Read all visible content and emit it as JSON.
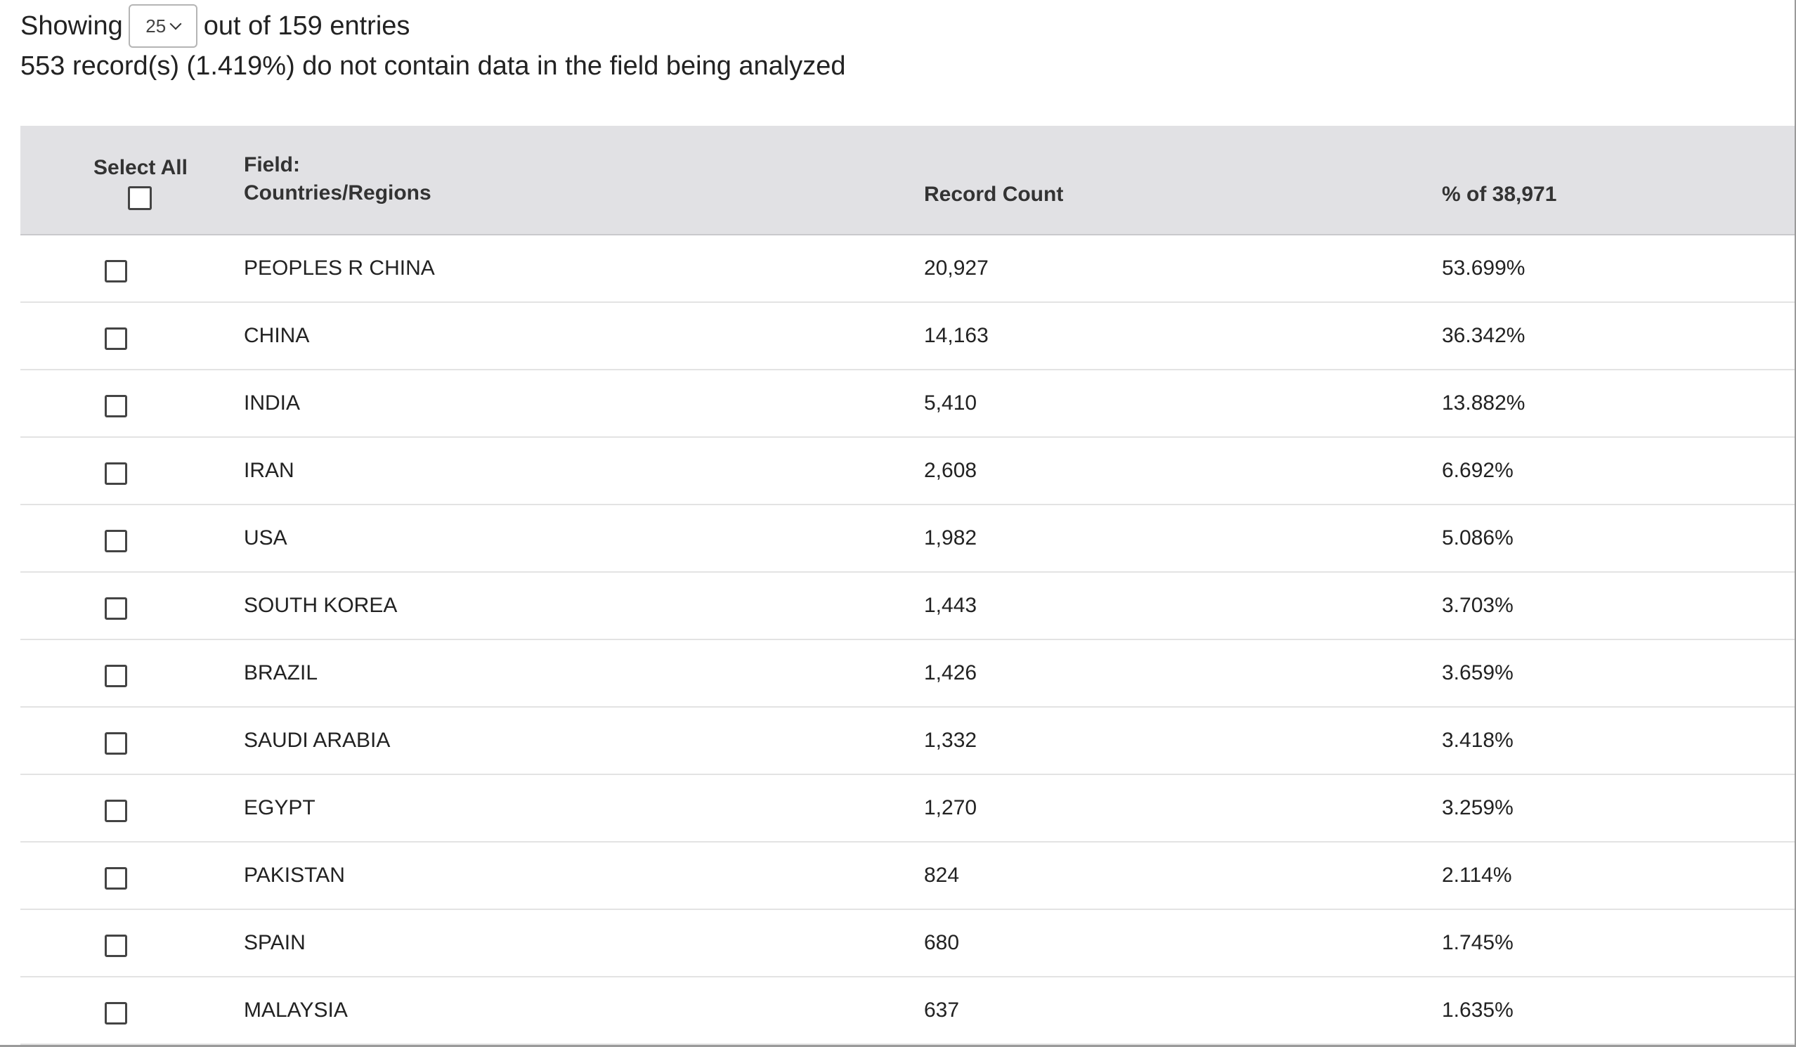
{
  "summary": {
    "showing_prefix": "Showing",
    "page_size": "25",
    "showing_suffix": "out of 159 entries",
    "missing_note": "553 record(s) (1.419%) do not contain data in the field being analyzed"
  },
  "table": {
    "headers": {
      "select_all": "Select All",
      "field_line1": "Field:",
      "field_line2": "Countries/Regions",
      "record_count": "Record Count",
      "percent": "% of 38,971"
    },
    "rows": [
      {
        "field": "PEOPLES R CHINA",
        "count": "20,927",
        "percent": "53.699%"
      },
      {
        "field": "CHINA",
        "count": "14,163",
        "percent": "36.342%"
      },
      {
        "field": "INDIA",
        "count": "5,410",
        "percent": "13.882%"
      },
      {
        "field": "IRAN",
        "count": "2,608",
        "percent": "6.692%"
      },
      {
        "field": "USA",
        "count": "1,982",
        "percent": "5.086%"
      },
      {
        "field": "SOUTH KOREA",
        "count": "1,443",
        "percent": "3.703%"
      },
      {
        "field": "BRAZIL",
        "count": "1,426",
        "percent": "3.659%"
      },
      {
        "field": "SAUDI ARABIA",
        "count": "1,332",
        "percent": "3.418%"
      },
      {
        "field": "EGYPT",
        "count": "1,270",
        "percent": "3.259%"
      },
      {
        "field": "PAKISTAN",
        "count": "824",
        "percent": "2.114%"
      },
      {
        "field": "SPAIN",
        "count": "680",
        "percent": "1.745%"
      },
      {
        "field": "MALAYSIA",
        "count": "637",
        "percent": "1.635%"
      }
    ]
  }
}
